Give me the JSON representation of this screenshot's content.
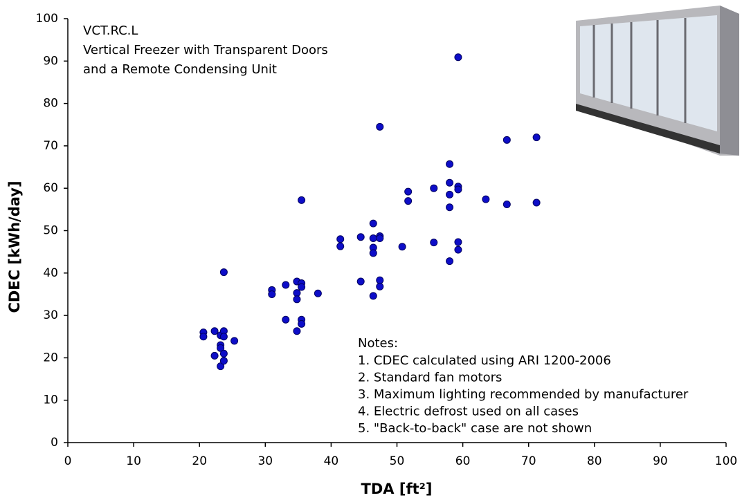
{
  "chart_data": {
    "type": "scatter",
    "title_lines": [
      "VCT.RC.L",
      "Vertical Freezer with Transparent Doors",
      "and a Remote Condensing Unit"
    ],
    "x_label": "TDA [ft²]",
    "y_label": "CDEC [kWh/day]",
    "xlim": [
      0,
      100
    ],
    "ylim": [
      0,
      100
    ],
    "xticks": [
      0,
      10,
      20,
      30,
      40,
      50,
      60,
      70,
      80,
      90,
      100
    ],
    "yticks": [
      0,
      10,
      20,
      30,
      40,
      50,
      60,
      70,
      80,
      90,
      100
    ],
    "series": [
      {
        "color": "#0d0dc8",
        "x": [
          20.6,
          20.6,
          22.3,
          22.3,
          23.2,
          23.2,
          23.2,
          23.2,
          23.7,
          23.7,
          23.7,
          23.7,
          23.7,
          25.3,
          31,
          31,
          33.1,
          33.1,
          34.8,
          34.8,
          34.8,
          34.8,
          35.5,
          35.5,
          35.5,
          35.5,
          35.5,
          38,
          41.4,
          41.4,
          44.5,
          44.5,
          46.4,
          46.4,
          46.4,
          46.4,
          46.4,
          47.4,
          47.4,
          47.4,
          47.4,
          47.4,
          50.8,
          51.7,
          51.7,
          55.6,
          55.6,
          58,
          58,
          58,
          58,
          58,
          59.3,
          59.3,
          59.3,
          59.3,
          59.3,
          63.5,
          66.7,
          66.7,
          71.2,
          71.2
        ],
        "y": [
          26,
          25,
          26.3,
          20.5,
          25.3,
          23,
          22.3,
          18,
          26.3,
          25,
          21,
          19.3,
          40.2,
          24,
          36,
          35,
          37.2,
          29,
          38,
          35.3,
          33.8,
          26.3,
          37.6,
          36.7,
          29,
          28,
          57.2,
          35.2,
          48,
          46.3,
          48.5,
          38,
          51.7,
          48.2,
          46,
          44.7,
          34.6,
          48.7,
          48.2,
          38.3,
          36.8,
          74.5,
          46.2,
          59.2,
          57,
          60,
          47.2,
          65.7,
          61.3,
          58.5,
          55.5,
          42.8,
          60.4,
          59.7,
          47.3,
          45.5,
          90.9,
          57.4,
          71.4,
          56.2,
          72,
          56.6
        ]
      }
    ],
    "notes": {
      "heading": "Notes:",
      "items": [
        "1.  CDEC calculated using ARI 1200-2006",
        "2.  Standard fan motors",
        "3.  Maximum lighting recommended by manufacturer",
        "4.  Electric defrost used on all cases",
        "5.  \"Back-to-back\" case are not shown"
      ]
    }
  }
}
